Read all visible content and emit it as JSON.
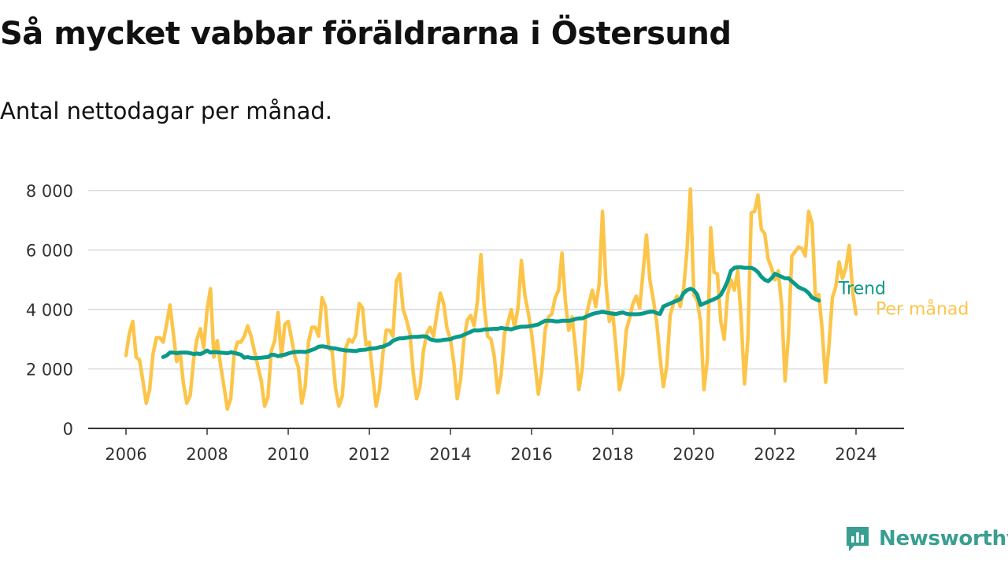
{
  "header": {
    "title": "Så mycket vabbar föräldrarna i Östersund",
    "subtitle": "Antal nettodagar per månad."
  },
  "brand": {
    "name": "Newsworthy",
    "color": "#3a9e92"
  },
  "colors": {
    "monthly": "#fcc54a",
    "trend": "#0b9a8a",
    "grid": "#d9d9d9",
    "axis": "#333333"
  },
  "chart_data": {
    "type": "line",
    "title": "Så mycket vabbar föräldrarna i Östersund",
    "subtitle": "Antal nettodagar per månad.",
    "xlabel": "",
    "ylabel": "",
    "xlim": [
      2006,
      2024.4
    ],
    "ylim": [
      0,
      8000
    ],
    "x_ticks": [
      2006,
      2008,
      2010,
      2012,
      2014,
      2016,
      2018,
      2020,
      2022,
      2024
    ],
    "x_tick_labels": [
      "2006",
      "2008",
      "2010",
      "2012",
      "2014",
      "2016",
      "2018",
      "2020",
      "2022",
      "2024"
    ],
    "y_ticks": [
      0,
      2000,
      4000,
      6000,
      8000
    ],
    "y_tick_labels": [
      "0",
      "2 000",
      "4 000",
      "6 000",
      "8 000"
    ],
    "grid": true,
    "series": [
      {
        "name": "Per månad",
        "x_start": 2006,
        "step": 0.0833333,
        "values": [
          2450,
          3200,
          3600,
          2400,
          2300,
          1600,
          850,
          1300,
          2500,
          3050,
          3050,
          2900,
          3500,
          4150,
          3200,
          2250,
          2550,
          1500,
          850,
          1100,
          2300,
          3000,
          3350,
          2700,
          4000,
          4700,
          2400,
          2950,
          2100,
          1400,
          650,
          1000,
          2500,
          2900,
          2900,
          3100,
          3450,
          3100,
          2600,
          2100,
          1600,
          750,
          1050,
          2600,
          2950,
          3900,
          2400,
          3500,
          3600,
          3000,
          2400,
          2050,
          850,
          1400,
          2900,
          3400,
          3400,
          3100,
          4400,
          4100,
          2700,
          2600,
          1350,
          750,
          1100,
          2700,
          3000,
          2900,
          3150,
          4200,
          4050,
          2800,
          2900,
          1800,
          750,
          1300,
          2500,
          3300,
          3300,
          3100,
          4950,
          5200,
          4000,
          3650,
          3200,
          1850,
          1000,
          1400,
          2600,
          3200,
          3400,
          3100,
          3850,
          4550,
          4200,
          3350,
          3000,
          2200,
          1000,
          1650,
          3000,
          3650,
          3800,
          3450,
          4300,
          5850,
          4100,
          3100,
          3000,
          2400,
          1200,
          1800,
          3200,
          3550,
          4000,
          3400,
          4050,
          5650,
          4500,
          3900,
          3200,
          2200,
          1150,
          1900,
          3300,
          3750,
          3850,
          4400,
          4650,
          5900,
          4300,
          3300,
          3750,
          2700,
          1300,
          2000,
          3700,
          4200,
          4650,
          4100,
          4850,
          7300,
          4900,
          3600,
          3900,
          2700,
          1300,
          1800,
          3300,
          3700,
          4200,
          4450,
          4050,
          5250,
          6500,
          5000,
          4350,
          3600,
          2400,
          1400,
          2100,
          3800,
          4200,
          4450,
          4100,
          4700,
          6000,
          8050,
          4500,
          4300,
          3600,
          1300,
          2300,
          6750,
          5250,
          5200,
          3600,
          3000,
          4500,
          5000,
          4650,
          5300,
          3700,
          1500,
          3000,
          7250,
          7300,
          7850,
          6700,
          6550,
          5700,
          5400,
          5000,
          5300,
          4100,
          1600,
          3100,
          5800,
          5950,
          6100,
          6050,
          5800,
          7300,
          6900,
          4400,
          4500,
          3300,
          1550,
          2800,
          4400,
          4750,
          5600,
          5050,
          5400,
          6150,
          4600,
          3850
        ]
      },
      {
        "name": "Trend",
        "x_start": 2006.917,
        "step": 0.0833333,
        "values": [
          2400,
          2450,
          2550,
          2550,
          2530,
          2550,
          2550,
          2550,
          2530,
          2500,
          2520,
          2500,
          2550,
          2620,
          2550,
          2570,
          2560,
          2550,
          2540,
          2530,
          2560,
          2540,
          2510,
          2480,
          2380,
          2400,
          2370,
          2360,
          2370,
          2380,
          2390,
          2400,
          2480,
          2470,
          2430,
          2460,
          2480,
          2520,
          2550,
          2570,
          2580,
          2580,
          2570,
          2600,
          2640,
          2680,
          2750,
          2760,
          2750,
          2720,
          2700,
          2690,
          2660,
          2640,
          2620,
          2620,
          2610,
          2600,
          2630,
          2640,
          2650,
          2680,
          2690,
          2700,
          2730,
          2750,
          2800,
          2850,
          2950,
          3000,
          3030,
          3030,
          3050,
          3070,
          3080,
          3080,
          3090,
          3100,
          3080,
          3000,
          2970,
          2950,
          2960,
          2980,
          2990,
          3000,
          3050,
          3080,
          3100,
          3150,
          3200,
          3250,
          3300,
          3290,
          3300,
          3330,
          3330,
          3340,
          3350,
          3350,
          3380,
          3360,
          3350,
          3330,
          3370,
          3400,
          3420,
          3420,
          3430,
          3450,
          3470,
          3500,
          3560,
          3620,
          3620,
          3620,
          3600,
          3600,
          3620,
          3620,
          3620,
          3640,
          3680,
          3700,
          3700,
          3750,
          3800,
          3850,
          3880,
          3900,
          3920,
          3900,
          3880,
          3860,
          3850,
          3880,
          3900,
          3860,
          3840,
          3840,
          3840,
          3850,
          3870,
          3900,
          3920,
          3930,
          3880,
          3850,
          4100,
          4150,
          4200,
          4250,
          4300,
          4350,
          4550,
          4650,
          4700,
          4650,
          4500,
          4150,
          4200,
          4250,
          4300,
          4350,
          4400,
          4500,
          4700,
          4950,
          5300,
          5400,
          5420,
          5420,
          5400,
          5400,
          5400,
          5350,
          5250,
          5100,
          5000,
          4950,
          5050,
          5200,
          5150,
          5100,
          5050,
          5050,
          4950,
          4850,
          4750,
          4700,
          4650,
          4550,
          4400,
          4350,
          4300
        ]
      }
    ]
  }
}
